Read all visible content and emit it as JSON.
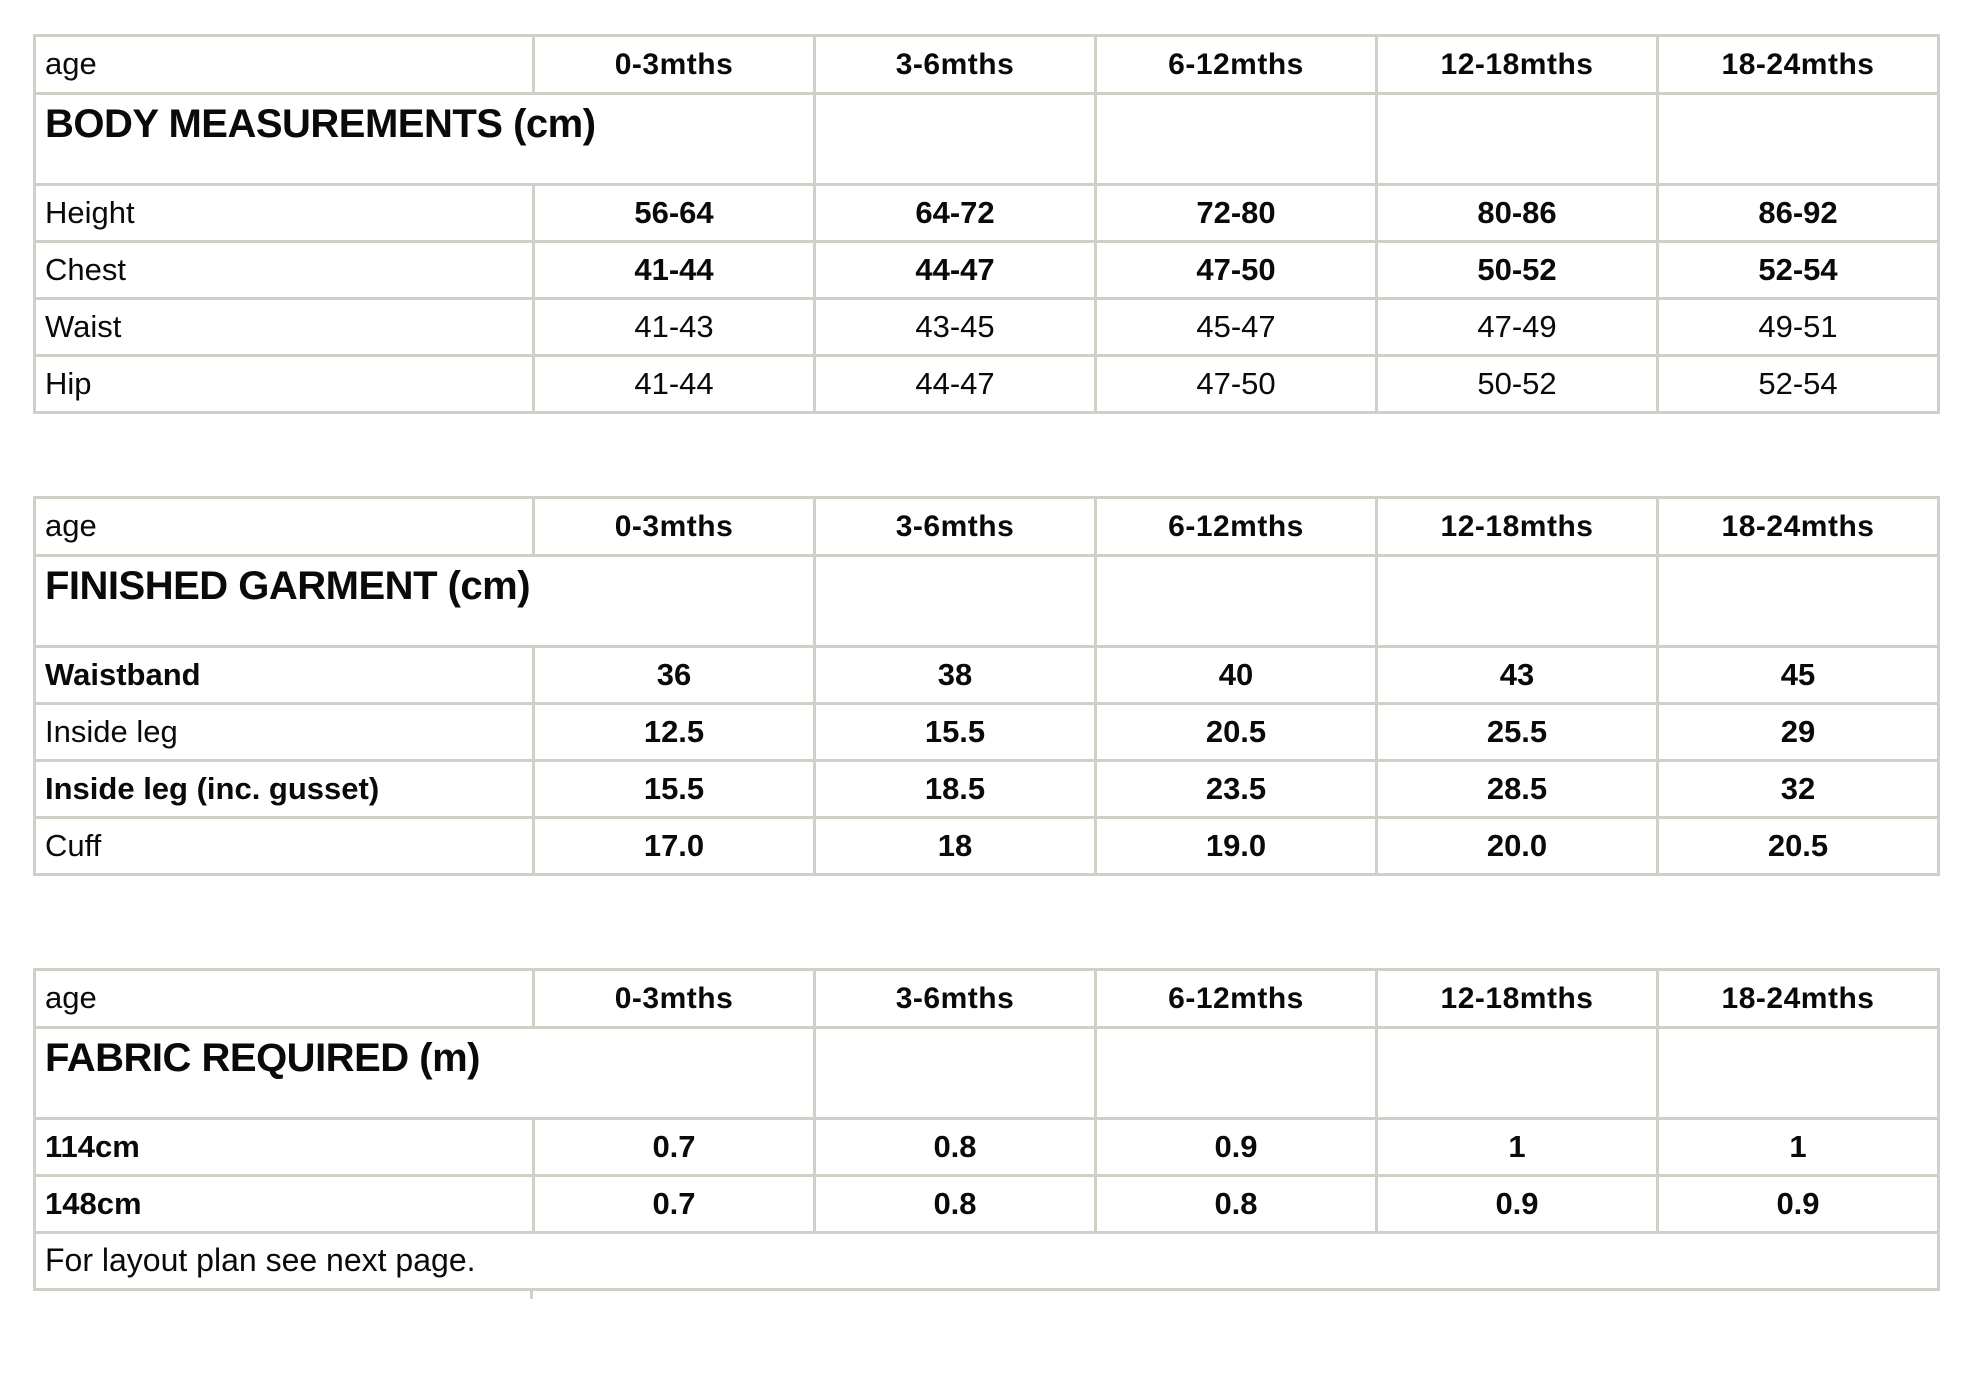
{
  "page": {
    "background": "#ffffff",
    "text_color": "#0a0a0a",
    "grid_color": "#d2cfc9"
  },
  "age_header": {
    "label": "age",
    "size_columns": [
      "0-3mths",
      "3-6mths",
      "6-12mths",
      "12-18mths",
      "18-24mths"
    ]
  },
  "tables": [
    {
      "name": "body-measurements",
      "title": "BODY MEASUREMENTS (cm)",
      "rows": [
        {
          "label": "Height",
          "label_bold": false,
          "values_bold": true,
          "values": [
            "56-64",
            "64-72",
            "72-80",
            "80-86",
            "86-92"
          ]
        },
        {
          "label": "Chest",
          "label_bold": false,
          "values_bold": true,
          "values": [
            "41-44",
            "44-47",
            "47-50",
            "50-52",
            "52-54"
          ]
        },
        {
          "label": "Waist",
          "label_bold": false,
          "values_bold": false,
          "values": [
            "41-43",
            "43-45",
            "45-47",
            "47-49",
            "49-51"
          ]
        },
        {
          "label": "Hip",
          "label_bold": false,
          "values_bold": false,
          "values": [
            "41-44",
            "44-47",
            "47-50",
            "50-52",
            "52-54"
          ]
        }
      ]
    },
    {
      "name": "finished-garment",
      "title": "FINISHED GARMENT (cm)",
      "rows": [
        {
          "label": "Waistband",
          "label_bold": true,
          "values_bold": true,
          "values": [
            "36",
            "38",
            "40",
            "43",
            "45"
          ]
        },
        {
          "label": "Inside leg",
          "label_bold": false,
          "values_bold": true,
          "values": [
            "12.5",
            "15.5",
            "20.5",
            "25.5",
            "29"
          ]
        },
        {
          "label": "Inside leg (inc. gusset)",
          "label_bold": true,
          "values_bold": true,
          "values": [
            "15.5",
            "18.5",
            "23.5",
            "28.5",
            "32"
          ]
        },
        {
          "label": "Cuff",
          "label_bold": false,
          "values_bold": true,
          "values": [
            "17.0",
            "18",
            "19.0",
            "20.0",
            "20.5"
          ]
        }
      ]
    },
    {
      "name": "fabric-required",
      "title": "FABRIC REQUIRED (m)",
      "rows": [
        {
          "label": "114cm",
          "label_bold": true,
          "values_bold": true,
          "values": [
            "0.7",
            "0.8",
            "0.9",
            "1",
            "1"
          ]
        },
        {
          "label": "148cm",
          "label_bold": true,
          "values_bold": true,
          "values": [
            "0.7",
            "0.8",
            "0.8",
            "0.9",
            "0.9"
          ]
        }
      ],
      "footer_note": "For layout plan see next page."
    }
  ]
}
